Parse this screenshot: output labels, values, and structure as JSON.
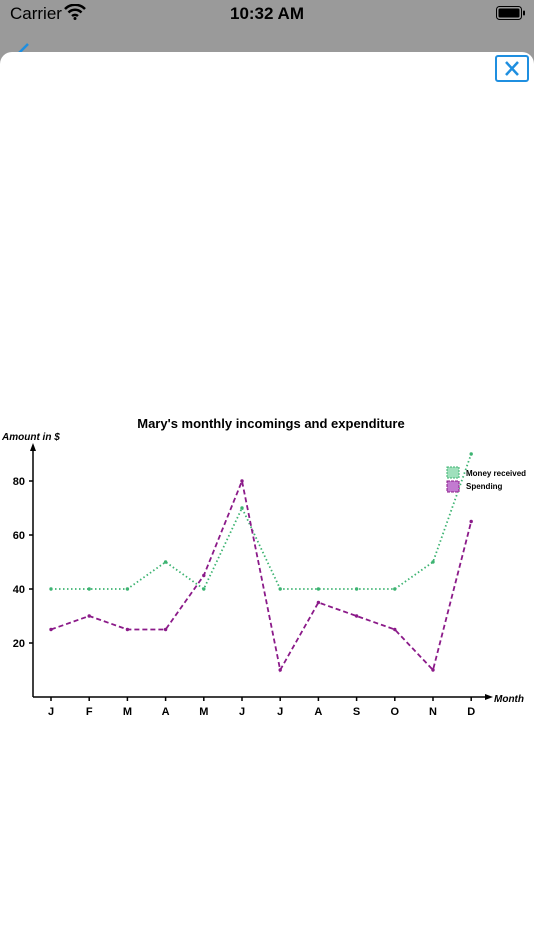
{
  "status_bar": {
    "carrier": "Carrier",
    "time": "10:32 AM"
  },
  "colors": {
    "accent": "#1f8fe0",
    "received": "#3cb371",
    "spending": "#8b1a89"
  },
  "chart_data": {
    "type": "line",
    "title": "Mary's monthly incomings and expenditure",
    "ylabel": "Amount in $",
    "xlabel": "Month",
    "categories": [
      "J",
      "F",
      "M",
      "A",
      "M",
      "J",
      "J",
      "A",
      "S",
      "O",
      "N",
      "D"
    ],
    "yticks": [
      20,
      40,
      60,
      80
    ],
    "ylim": [
      0,
      90
    ],
    "legend_position": "top-right",
    "series": [
      {
        "name": "Money received",
        "values": [
          40,
          40,
          40,
          50,
          40,
          70,
          40,
          40,
          40,
          40,
          50,
          90
        ]
      },
      {
        "name": "Spending",
        "values": [
          25,
          30,
          25,
          25,
          45,
          80,
          10,
          35,
          30,
          25,
          10,
          65
        ]
      }
    ]
  }
}
